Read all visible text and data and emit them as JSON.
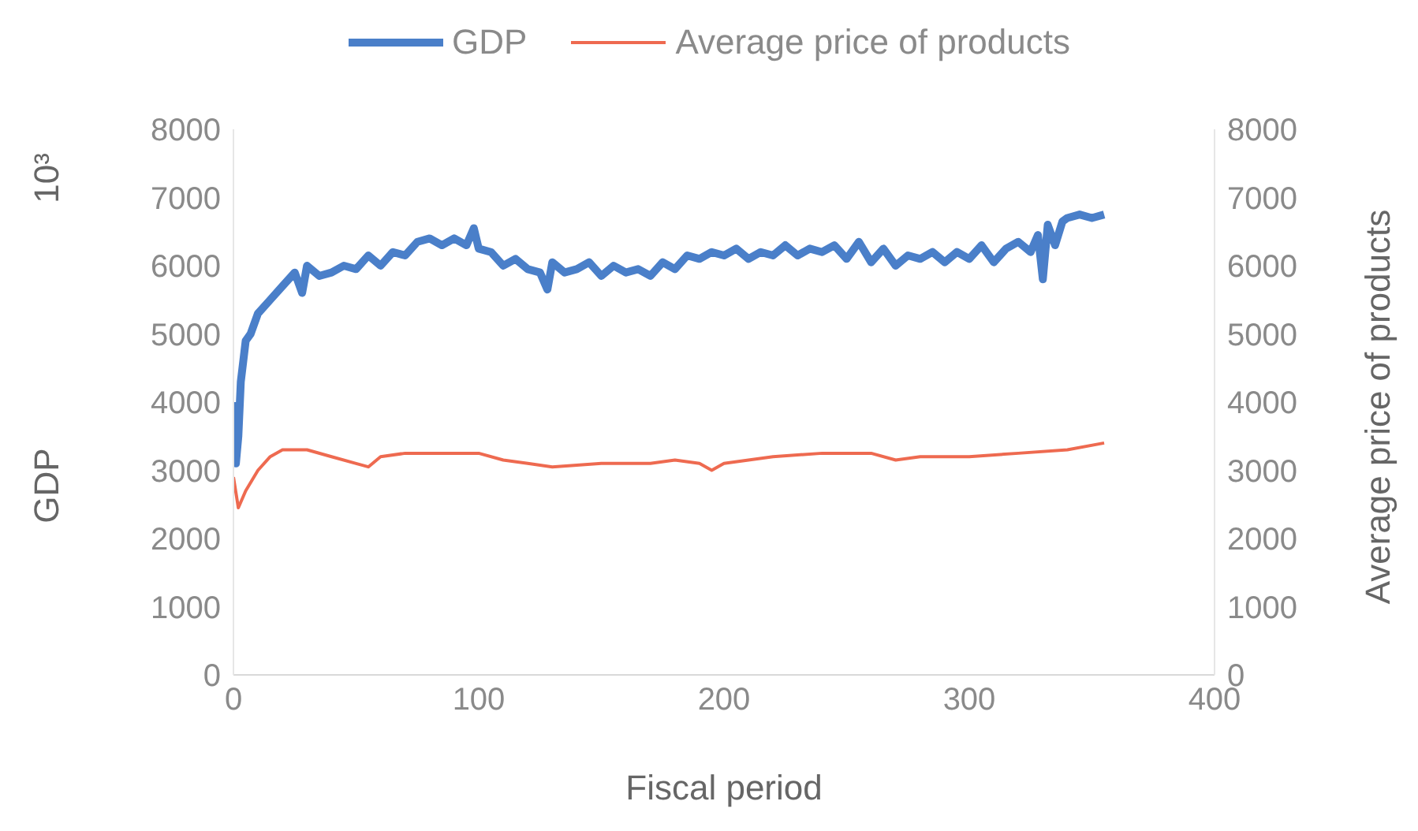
{
  "chart_data": {
    "type": "line",
    "xlabel": "Fiscal period",
    "ylabel": "GDP",
    "y2label": "Average price of products",
    "annotations": [
      "10³"
    ],
    "xlim": [
      0,
      400
    ],
    "xticks": [
      0,
      100,
      200,
      300,
      400
    ],
    "ylim": [
      0,
      8000
    ],
    "yticks": [
      0,
      1000,
      2000,
      3000,
      4000,
      5000,
      6000,
      7000,
      8000
    ],
    "y2lim": [
      0,
      8000
    ],
    "y2ticks": [
      0,
      1000,
      2000,
      3000,
      4000,
      5000,
      6000,
      7000,
      8000
    ],
    "legend": "top",
    "marker": "none",
    "line_style": "solid",
    "series": [
      {
        "name": "GDP",
        "color": "#4a7fc9",
        "x": [
          0,
          1,
          2,
          3,
          5,
          7,
          10,
          15,
          20,
          25,
          28,
          30,
          35,
          40,
          45,
          50,
          55,
          60,
          65,
          70,
          75,
          80,
          85,
          90,
          95,
          98,
          100,
          105,
          110,
          115,
          120,
          125,
          128,
          130,
          135,
          140,
          145,
          150,
          155,
          160,
          165,
          170,
          175,
          180,
          185,
          190,
          195,
          200,
          205,
          210,
          215,
          220,
          225,
          230,
          235,
          240,
          245,
          250,
          255,
          260,
          265,
          270,
          275,
          280,
          285,
          290,
          295,
          300,
          305,
          310,
          315,
          320,
          325,
          328,
          330,
          332,
          335,
          338,
          340,
          345,
          350,
          355
        ],
        "values": [
          4000,
          3100,
          3500,
          4300,
          4900,
          5000,
          5300,
          5500,
          5700,
          5900,
          5600,
          6000,
          5850,
          5900,
          6000,
          5950,
          6150,
          6000,
          6200,
          6150,
          6350,
          6400,
          6300,
          6400,
          6300,
          6550,
          6250,
          6200,
          6000,
          6100,
          5950,
          5900,
          5650,
          6050,
          5900,
          5950,
          6050,
          5850,
          6000,
          5900,
          5950,
          5850,
          6050,
          5950,
          6150,
          6100,
          6200,
          6150,
          6250,
          6100,
          6200,
          6150,
          6300,
          6150,
          6250,
          6200,
          6300,
          6100,
          6350,
          6050,
          6250,
          6000,
          6150,
          6100,
          6200,
          6050,
          6200,
          6100,
          6300,
          6050,
          6250,
          6350,
          6200,
          6450,
          5800,
          6600,
          6300,
          6650,
          6700,
          6750,
          6700,
          6750
        ]
      },
      {
        "name": "Average price of products",
        "color": "#ee6a50",
        "axis": "y2",
        "x": [
          0,
          2,
          5,
          10,
          15,
          20,
          30,
          40,
          50,
          55,
          60,
          70,
          80,
          100,
          110,
          120,
          130,
          150,
          170,
          180,
          190,
          195,
          200,
          220,
          240,
          260,
          270,
          280,
          300,
          320,
          340,
          355
        ],
        "values": [
          2900,
          2450,
          2700,
          3000,
          3200,
          3300,
          3300,
          3200,
          3100,
          3050,
          3200,
          3250,
          3250,
          3250,
          3150,
          3100,
          3050,
          3100,
          3100,
          3150,
          3100,
          3000,
          3100,
          3200,
          3250,
          3250,
          3150,
          3200,
          3200,
          3250,
          3300,
          3400
        ]
      }
    ]
  }
}
